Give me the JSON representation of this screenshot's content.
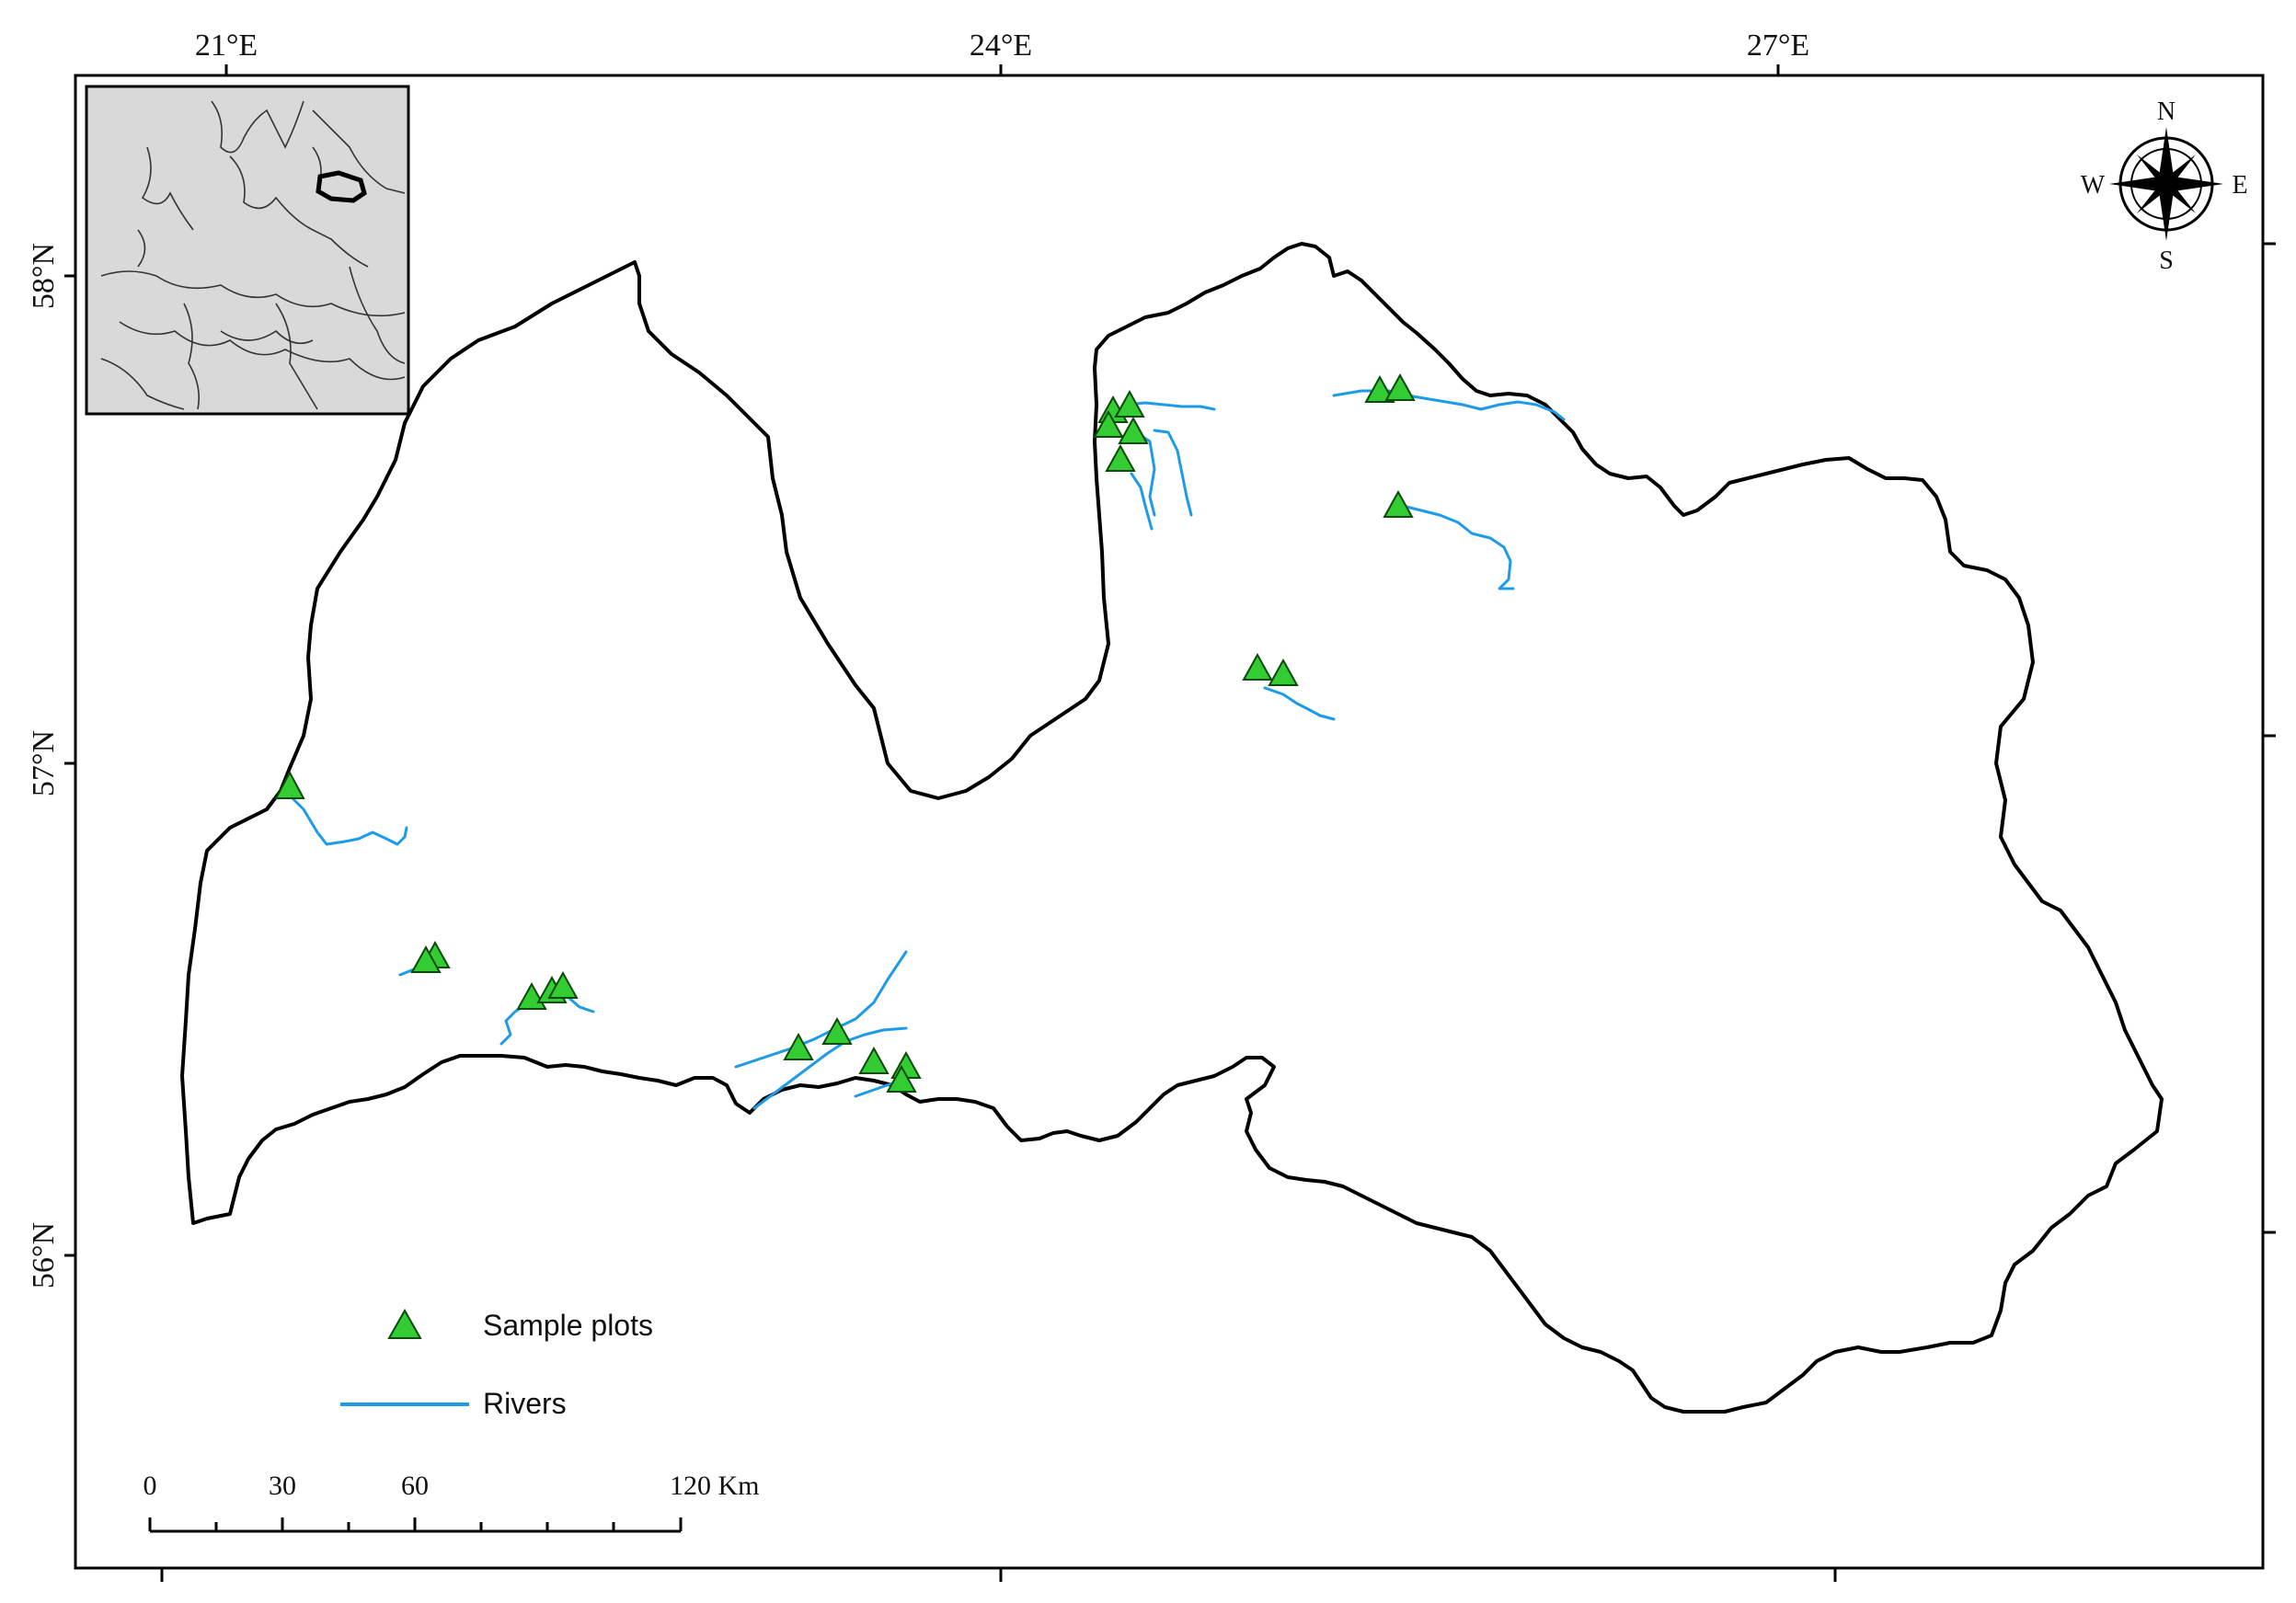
{
  "map": {
    "lon_labels": [
      "21°E",
      "24°E",
      "27°E"
    ],
    "lat_labels": [
      "58°N",
      "57°N",
      "56°N"
    ],
    "legend": {
      "sample_plots_label": "Sample plots",
      "rivers_label": "Rivers"
    },
    "scale_bar": {
      "labels": [
        "0",
        "30",
        "60",
        "120 Km"
      ]
    },
    "compass": {
      "north": "N",
      "south": "S",
      "east": "E",
      "west": "W"
    },
    "colors": {
      "sample_plot_fill": "#33cc33",
      "river": "#1e9be8",
      "border": "#000000",
      "inset_bg": "#d9d9d9"
    }
  }
}
